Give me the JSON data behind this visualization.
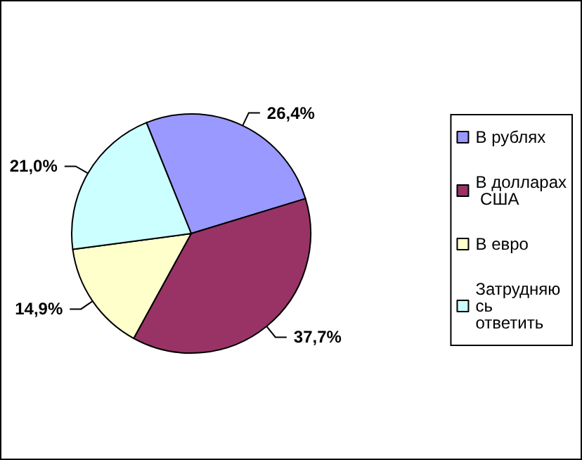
{
  "chart_data": {
    "type": "pie",
    "categories": [
      "В рублях",
      "В долларах США",
      "В евро",
      "Затрудняюсь ответить"
    ],
    "values": [
      26.4,
      37.7,
      14.9,
      21.0
    ],
    "colors": [
      "#9999ff",
      "#993366",
      "#ffffcc",
      "#ccffff"
    ],
    "value_labels": [
      "26,4%",
      "37,7%",
      "14,9%",
      "21,0%"
    ],
    "legend": "right"
  }
}
